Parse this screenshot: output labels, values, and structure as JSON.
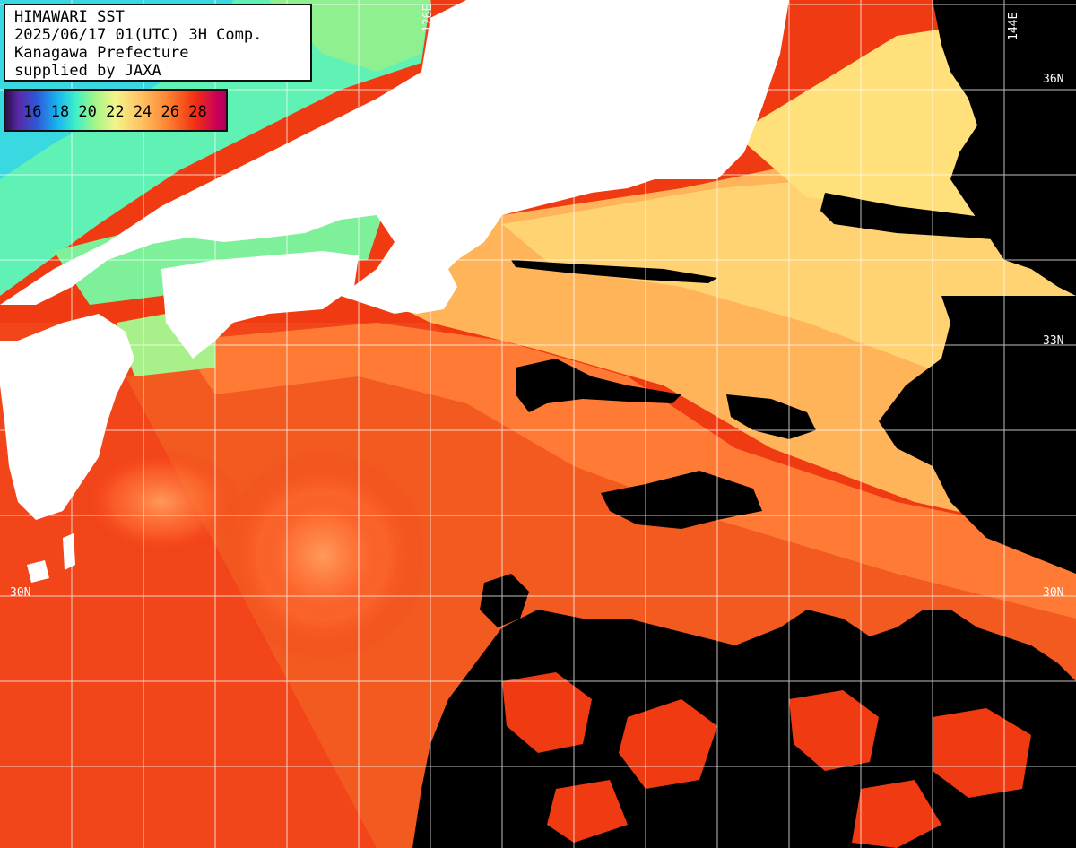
{
  "title": {
    "line1": "HIMAWARI SST",
    "line2": "2025/06/17 01(UTC) 3H Comp.",
    "line3": "Kanagawa Prefecture",
    "line4": "supplied by JAXA"
  },
  "legend": {
    "labels": "16 18 20 22 24 26 28",
    "values": [
      16,
      18,
      20,
      22,
      24,
      26,
      28
    ],
    "unit_colors": {
      "cold": "#2d56d8",
      "mid": "#9ef58a",
      "warm": "#ffc060",
      "hot": "#f23010",
      "max": "#c8005a"
    }
  },
  "grid_labels": {
    "lon_126": "126E",
    "lon_144": "144E",
    "lat_36": "36N",
    "lat_33": "33N",
    "lat_30_left": "30N",
    "lat_30_right": "30N"
  },
  "colors": {
    "land": "#ffffff",
    "cloud_mask": "#000000",
    "grid": "#ffffff"
  }
}
